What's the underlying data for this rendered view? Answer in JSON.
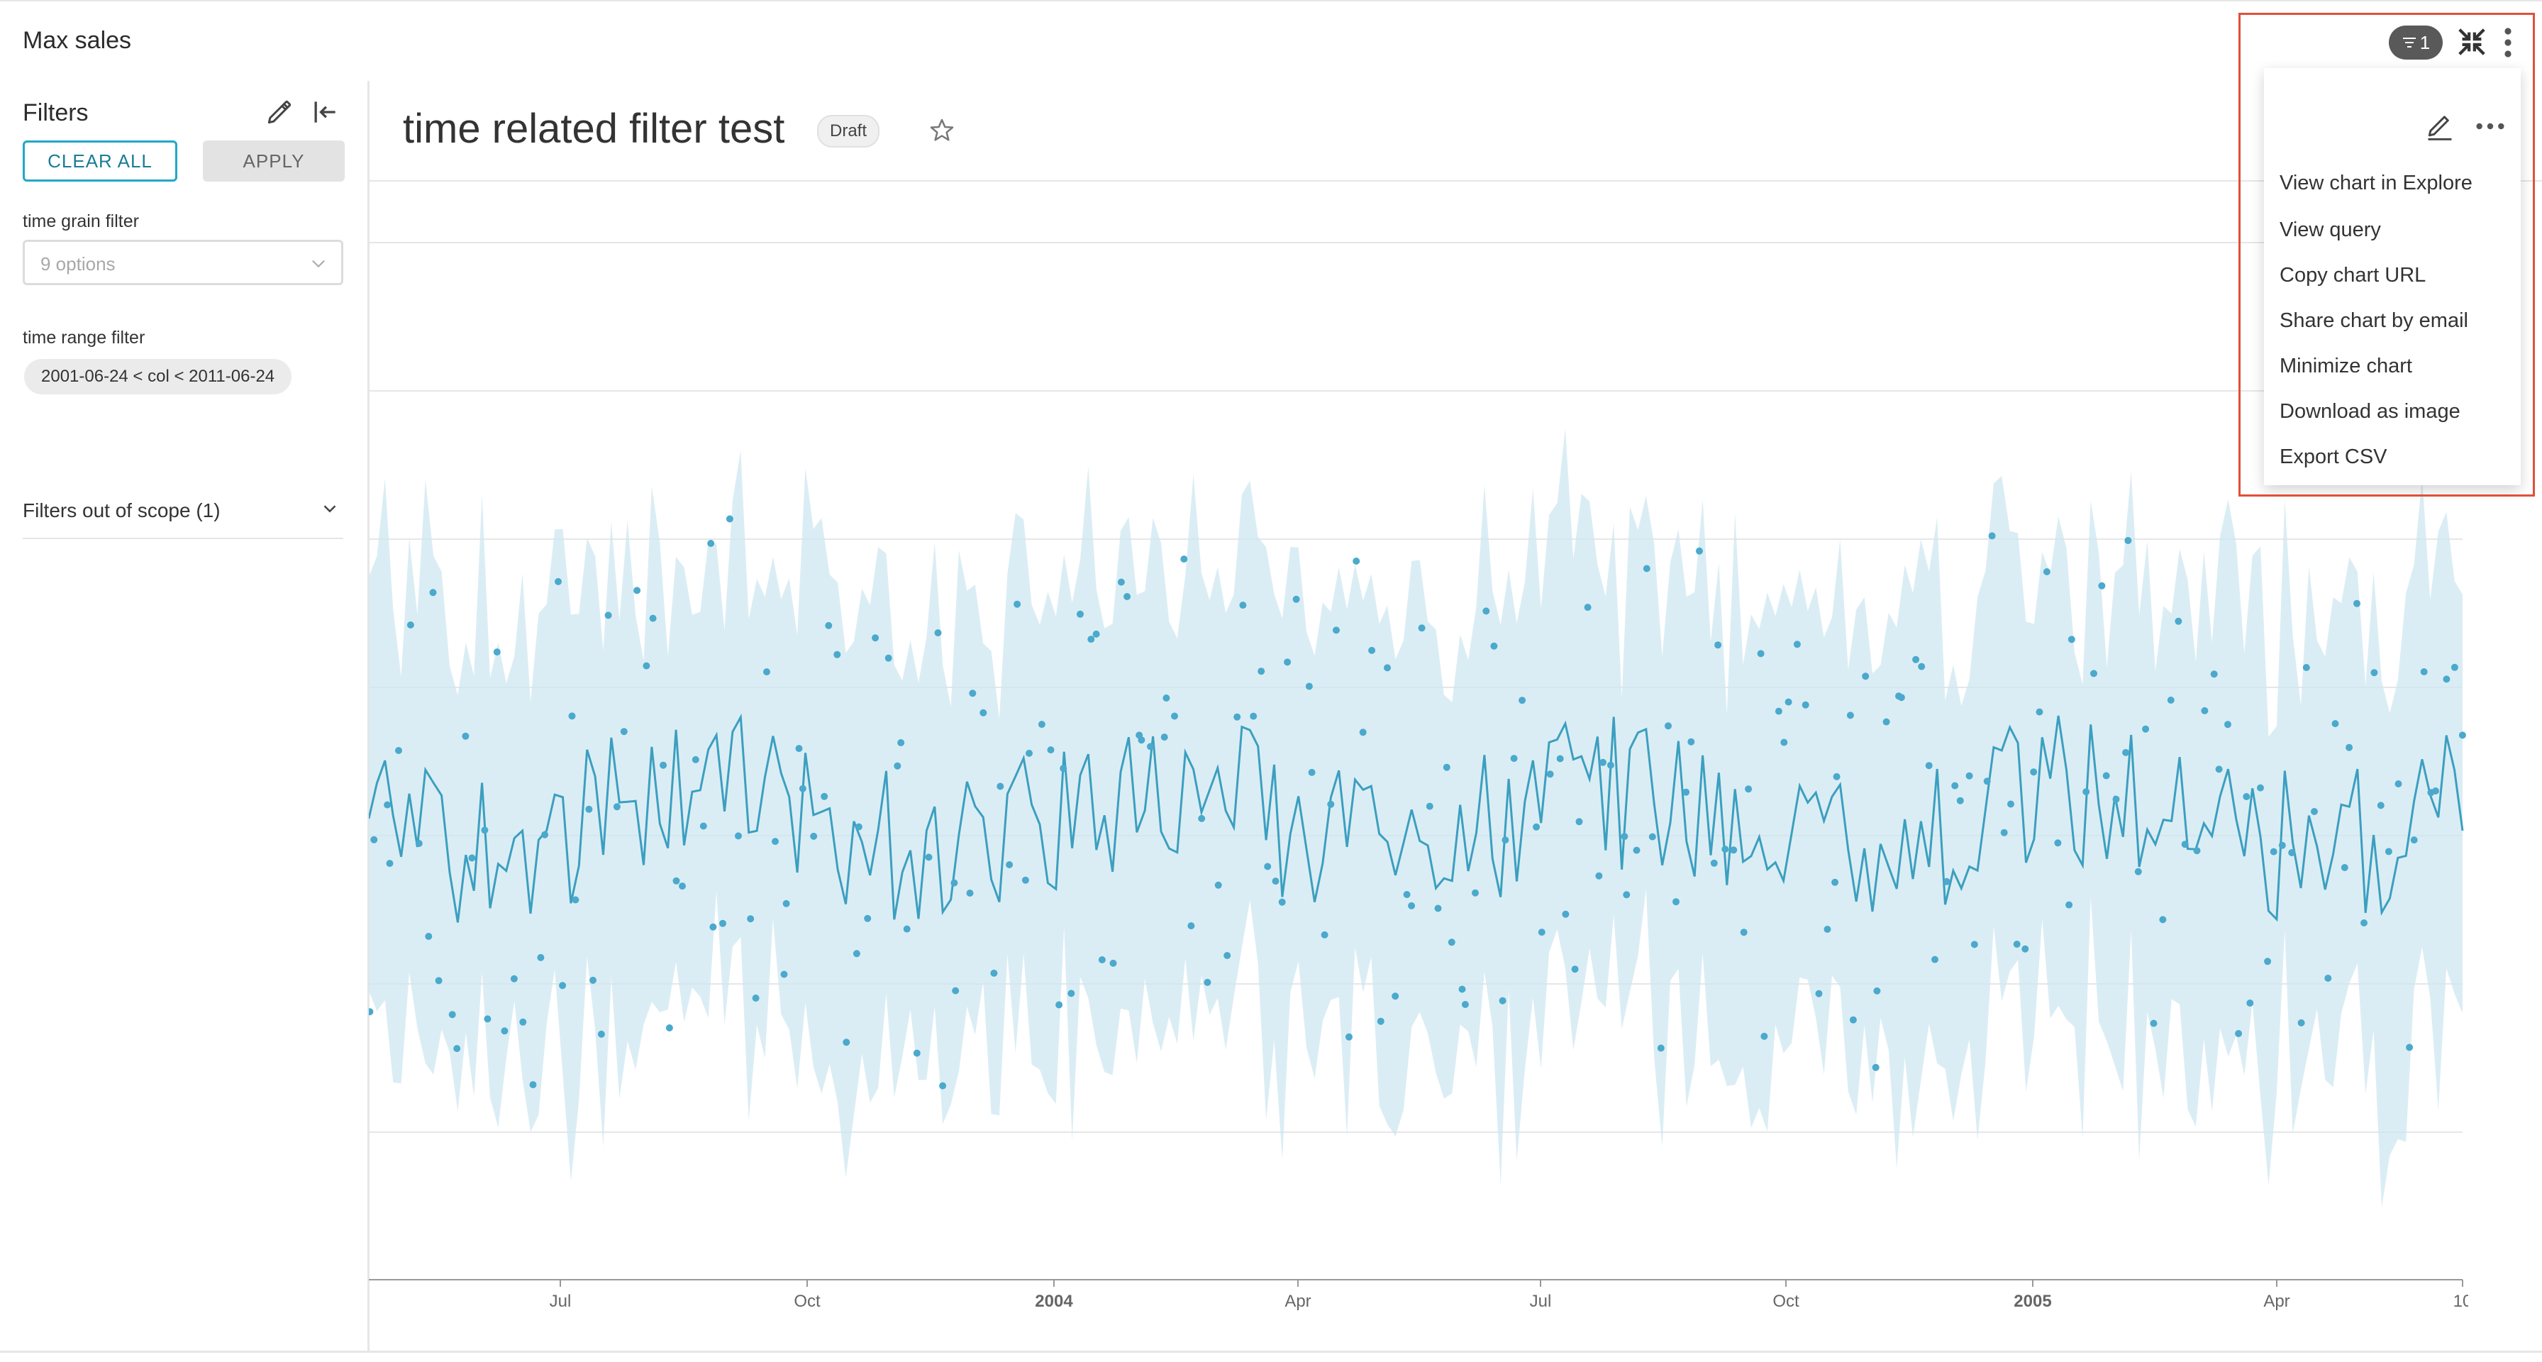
{
  "header": {
    "chart_title": "Max sales"
  },
  "filter_bar": {
    "heading": "Filters",
    "clear_all_label": "CLEAR ALL",
    "apply_label": "APPLY",
    "filters": [
      {
        "label": "time grain filter",
        "placeholder": "9 options"
      },
      {
        "label": "time range filter",
        "value": "2001-06-24 < col < 2011-06-24"
      }
    ],
    "out_of_scope_label": "Filters out of scope (1)"
  },
  "dashboard": {
    "title": "time related filter test",
    "status_badge": "Draft"
  },
  "chart_controls": {
    "filter_count": "1"
  },
  "menu": {
    "items": [
      "View chart in Explore",
      "View query",
      "Copy chart URL",
      "Share chart by email",
      "Minimize chart",
      "Download as image",
      "Export CSV"
    ]
  },
  "colors": {
    "line": "#3b9fc0",
    "band": "#cfe7f0",
    "point": "#4aa9cc",
    "accent": "#20a7c9",
    "highlight": "#e0503a"
  },
  "chart_data": {
    "type": "line",
    "description_free": true,
    "series": [
      {
        "name": "observation",
        "style": "line"
      },
      {
        "name": "confidence band",
        "style": "area"
      },
      {
        "name": "points",
        "style": "scatter"
      }
    ],
    "x_ticks": [
      {
        "label": "Jul",
        "bold": false
      },
      {
        "label": "Oct",
        "bold": false
      },
      {
        "label": "2004",
        "bold": true
      },
      {
        "label": "Apr",
        "bold": false
      },
      {
        "label": "Jul",
        "bold": false
      },
      {
        "label": "Oct",
        "bold": false
      },
      {
        "label": "2005",
        "bold": true
      },
      {
        "label": "Apr",
        "bold": false
      },
      {
        "label": "10",
        "bold": false
      }
    ],
    "y_gridlines": 7
  }
}
